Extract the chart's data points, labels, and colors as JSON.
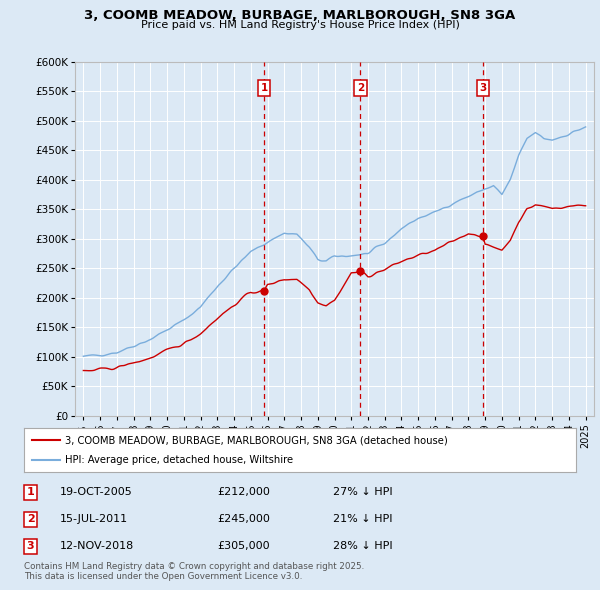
{
  "title": "3, COOMB MEADOW, BURBAGE, MARLBOROUGH, SN8 3GA",
  "subtitle": "Price paid vs. HM Land Registry's House Price Index (HPI)",
  "background_color": "#dce9f5",
  "plot_bg_color": "#dce9f5",
  "hpi_color": "#7aaddc",
  "price_color": "#cc0000",
  "marker_color": "#cc0000",
  "sale_dates": [
    2005.8,
    2011.54,
    2018.87
  ],
  "sale_prices": [
    212000,
    245000,
    305000
  ],
  "sale_labels": [
    "1",
    "2",
    "3"
  ],
  "sale_info": [
    {
      "num": "1",
      "date": "19-OCT-2005",
      "price": "£212,000",
      "note": "27% ↓ HPI"
    },
    {
      "num": "2",
      "date": "15-JUL-2011",
      "price": "£245,000",
      "note": "21% ↓ HPI"
    },
    {
      "num": "3",
      "date": "12-NOV-2018",
      "price": "£305,000",
      "note": "28% ↓ HPI"
    }
  ],
  "legend_line1": "3, COOMB MEADOW, BURBAGE, MARLBOROUGH, SN8 3GA (detached house)",
  "legend_line2": "HPI: Average price, detached house, Wiltshire",
  "footer": "Contains HM Land Registry data © Crown copyright and database right 2025.\nThis data is licensed under the Open Government Licence v3.0.",
  "ylim": [
    0,
    600000
  ],
  "xlim": [
    1994.5,
    2025.5
  ],
  "yticks": [
    0,
    50000,
    100000,
    150000,
    200000,
    250000,
    300000,
    350000,
    400000,
    450000,
    500000,
    550000,
    600000
  ],
  "xticks": [
    1995,
    1996,
    1997,
    1998,
    1999,
    2000,
    2001,
    2002,
    2003,
    2004,
    2005,
    2006,
    2007,
    2008,
    2009,
    2010,
    2011,
    2012,
    2013,
    2014,
    2015,
    2016,
    2017,
    2018,
    2019,
    2020,
    2021,
    2022,
    2023,
    2024,
    2025
  ]
}
